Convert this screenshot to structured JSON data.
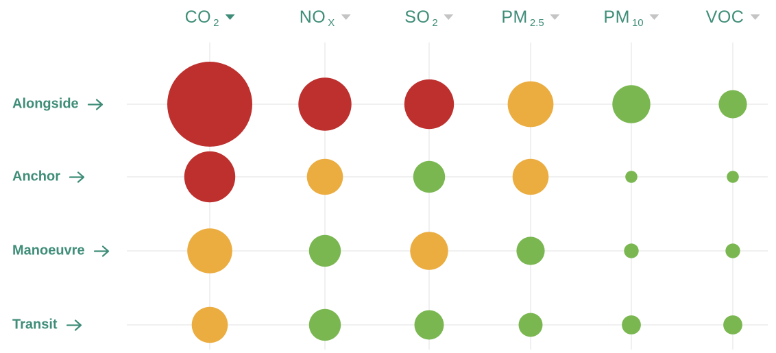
{
  "chart_data": {
    "type": "bubble-matrix",
    "columns": [
      {
        "label": "CO",
        "sub": "2",
        "sorted": true
      },
      {
        "label": "NO",
        "sub": "X",
        "sorted": false
      },
      {
        "label": "SO",
        "sub": "2",
        "sorted": false
      },
      {
        "label": "PM",
        "sub": "2.5",
        "sorted": false
      },
      {
        "label": "PM",
        "sub": "10",
        "sorted": false
      },
      {
        "label": "VOC",
        "sub": "",
        "sorted": false
      }
    ],
    "rows": [
      "Alongside",
      "Anchor",
      "Manoeuvre",
      "Transit"
    ],
    "values": [
      [
        1.0,
        0.39,
        0.34,
        0.29,
        0.2,
        0.11
      ],
      [
        0.36,
        0.18,
        0.14,
        0.18,
        0.02,
        0.02
      ],
      [
        0.28,
        0.14,
        0.2,
        0.11,
        0.03,
        0.03
      ],
      [
        0.18,
        0.14,
        0.12,
        0.08,
        0.05,
        0.05
      ]
    ],
    "levels": [
      [
        "high",
        "high",
        "high",
        "medium",
        "low",
        "low"
      ],
      [
        "high",
        "medium",
        "low",
        "medium",
        "low",
        "low"
      ],
      [
        "medium",
        "low",
        "medium",
        "low",
        "low",
        "low"
      ],
      [
        "medium",
        "low",
        "low",
        "low",
        "low",
        "low"
      ]
    ],
    "colors": {
      "high": "#bd302e",
      "medium": "#ebac40",
      "low": "#7ab751",
      "text": "#3f8d78",
      "grid": "#ebebeb"
    }
  }
}
